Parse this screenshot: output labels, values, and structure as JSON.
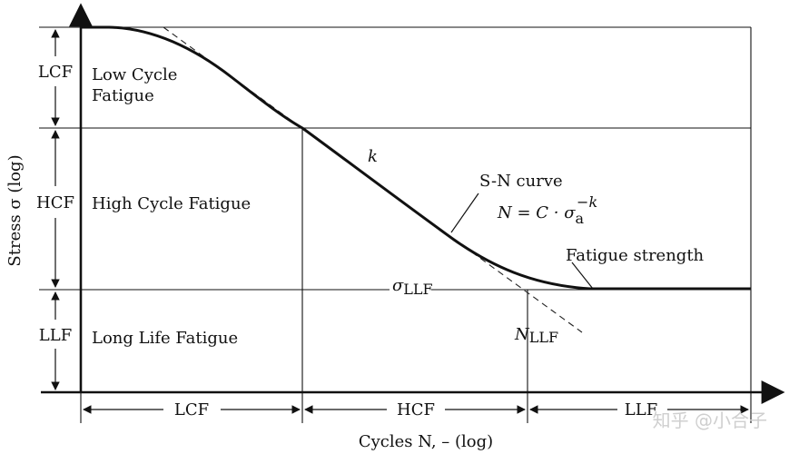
{
  "y_axis": {
    "label": "Stress σ (log)"
  },
  "x_axis": {
    "label": "Cycles N, – (log)"
  },
  "y_regions": [
    {
      "abbr": "LCF",
      "name_line1": "Low Cycle",
      "name_line2": "Fatigue"
    },
    {
      "abbr": "HCF",
      "name_line1": "High Cycle Fatigue",
      "name_line2": ""
    },
    {
      "abbr": "LLF",
      "name_line1": "Long Life Fatigue",
      "name_line2": ""
    }
  ],
  "x_regions": [
    {
      "abbr": "LCF"
    },
    {
      "abbr": "HCF"
    },
    {
      "abbr": "LLF"
    }
  ],
  "annotations": {
    "slope": "k",
    "curve_name": "S-N curve",
    "equation": {
      "lhs": "N = C · σ",
      "sub": "a",
      "sup": "−k"
    },
    "fatigue_strength": "Fatigue strength",
    "sigma_llf": {
      "base": "σ",
      "sub": "LLF"
    },
    "n_llf": {
      "base": "N",
      "sub": "LLF"
    }
  },
  "watermark": "知乎 @小合子"
}
